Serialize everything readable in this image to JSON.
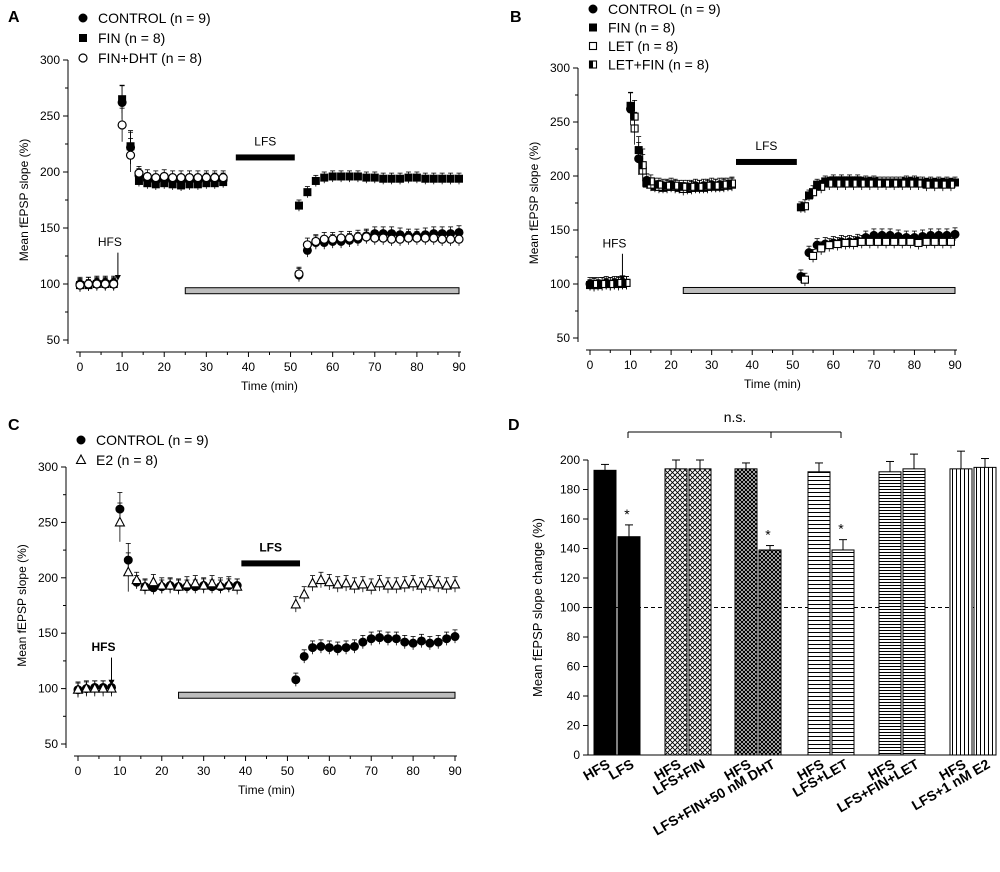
{
  "chart_data": [
    {
      "panel": "A",
      "type": "scatter",
      "xlabel": "Time (min)",
      "ylabel": "Mean fEPSP slope (%)",
      "xlim": [
        0,
        90
      ],
      "ylim": [
        50,
        300
      ],
      "xticks": [
        0,
        10,
        20,
        30,
        40,
        50,
        60,
        70,
        80,
        90
      ],
      "yticks": [
        50,
        100,
        150,
        200,
        250,
        300
      ],
      "legend": [
        {
          "label": "CONTROL (n = 9)",
          "marker": "filled-circle"
        },
        {
          "label": "FIN (n = 8)",
          "marker": "filled-square"
        },
        {
          "label": "FIN+DHT (n = 8)",
          "marker": "open-circle"
        }
      ],
      "annotations": {
        "hfs": "HFS",
        "hfs_time": 9,
        "lfs": "LFS",
        "lfs_start": 37,
        "lfs_end": 51,
        "drug_start": 25,
        "drug_end": 90
      },
      "series": [
        {
          "name": "CONTROL (n = 9)",
          "marker": "filled-circle",
          "x": [
            0,
            2,
            4,
            6,
            8,
            10,
            12,
            14,
            16,
            18,
            20,
            22,
            24,
            26,
            28,
            30,
            32,
            34,
            52,
            54,
            56,
            58,
            60,
            62,
            64,
            66,
            68,
            70,
            72,
            74,
            76,
            78,
            80,
            82,
            84,
            86,
            88,
            90
          ],
          "y": [
            100,
            100,
            101,
            101,
            101,
            262,
            222,
            197,
            193,
            192,
            193,
            192,
            192,
            192,
            192,
            193,
            193,
            193,
            108,
            130,
            137,
            137,
            138,
            138,
            139,
            140,
            143,
            145,
            145,
            145,
            144,
            143,
            143,
            144,
            145,
            145,
            145,
            146
          ],
          "err": 6
        },
        {
          "name": "FIN (n = 8)",
          "marker": "filled-square",
          "x": [
            0,
            2,
            4,
            6,
            8,
            10,
            12,
            14,
            16,
            18,
            20,
            22,
            24,
            26,
            28,
            30,
            32,
            34,
            52,
            54,
            56,
            58,
            60,
            62,
            64,
            66,
            68,
            70,
            72,
            74,
            76,
            78,
            80,
            82,
            84,
            86,
            88,
            90
          ],
          "y": [
            99,
            99,
            100,
            100,
            100,
            265,
            223,
            192,
            190,
            189,
            190,
            189,
            188,
            189,
            189,
            190,
            190,
            191,
            170,
            182,
            192,
            195,
            196,
            196,
            196,
            196,
            195,
            195,
            194,
            194,
            194,
            195,
            195,
            194,
            194,
            194,
            194,
            194
          ],
          "err": 5
        },
        {
          "name": "FIN+DHT (n = 8)",
          "marker": "open-circle",
          "x": [
            0,
            2,
            4,
            6,
            8,
            10,
            12,
            14,
            16,
            18,
            20,
            22,
            24,
            26,
            28,
            30,
            32,
            34,
            52,
            54,
            56,
            58,
            60,
            62,
            64,
            66,
            68,
            70,
            72,
            74,
            76,
            78,
            80,
            82,
            84,
            86,
            88,
            90
          ],
          "y": [
            99,
            100,
            100,
            100,
            100,
            242,
            215,
            199,
            196,
            195,
            196,
            195,
            195,
            195,
            195,
            195,
            195,
            195,
            109,
            135,
            138,
            140,
            140,
            141,
            141,
            142,
            142,
            141,
            141,
            140,
            140,
            141,
            141,
            141,
            141,
            140,
            140,
            140
          ],
          "err": 6
        }
      ]
    },
    {
      "panel": "B",
      "type": "scatter",
      "xlabel": "Time (min)",
      "ylabel": "Mean fEPSP slope (%)",
      "xlim": [
        0,
        90
      ],
      "ylim": [
        50,
        300
      ],
      "xticks": [
        0,
        10,
        20,
        30,
        40,
        50,
        60,
        70,
        80,
        90
      ],
      "yticks": [
        50,
        100,
        150,
        200,
        250,
        300
      ],
      "legend": [
        {
          "label": "CONTROL (n = 9)",
          "marker": "filled-circle"
        },
        {
          "label": "FIN (n = 8)",
          "marker": "filled-square"
        },
        {
          "label": "LET (n = 8)",
          "marker": "open-square"
        },
        {
          "label": "LET+FIN (n = 8)",
          "marker": "half-square"
        }
      ],
      "annotations": {
        "hfs": "HFS",
        "hfs_time": 8,
        "lfs": "LFS",
        "lfs_start": 36,
        "lfs_end": 51,
        "drug_start": 23,
        "drug_end": 90
      },
      "series": [
        {
          "name": "CONTROL (n = 9)",
          "marker": "filled-circle",
          "x": [
            0,
            2,
            4,
            6,
            8,
            10,
            12,
            14,
            16,
            18,
            20,
            22,
            24,
            26,
            28,
            30,
            32,
            34,
            52,
            54,
            56,
            58,
            60,
            62,
            64,
            66,
            68,
            70,
            72,
            74,
            76,
            78,
            80,
            82,
            84,
            86,
            88,
            90
          ],
          "y": [
            100,
            100,
            101,
            101,
            101,
            262,
            216,
            196,
            192,
            191,
            192,
            190,
            190,
            191,
            191,
            192,
            192,
            192,
            107,
            129,
            136,
            137,
            138,
            139,
            139,
            140,
            143,
            145,
            145,
            145,
            144,
            143,
            143,
            144,
            145,
            145,
            145,
            146
          ],
          "err": 6
        },
        {
          "name": "FIN (n = 8)",
          "marker": "filled-square",
          "x": [
            0,
            2,
            4,
            6,
            8,
            10,
            12,
            14,
            16,
            18,
            20,
            22,
            24,
            26,
            28,
            30,
            32,
            34,
            52,
            54,
            56,
            58,
            60,
            62,
            64,
            66,
            68,
            70,
            72,
            74,
            76,
            78,
            80,
            82,
            84,
            86,
            88,
            90
          ],
          "y": [
            99,
            99,
            100,
            100,
            100,
            265,
            224,
            193,
            190,
            189,
            190,
            189,
            188,
            189,
            189,
            190,
            190,
            191,
            171,
            182,
            192,
            195,
            196,
            196,
            196,
            196,
            195,
            195,
            194,
            194,
            194,
            195,
            195,
            194,
            194,
            194,
            194,
            194
          ],
          "err": 5
        },
        {
          "name": "LET (n = 8)",
          "marker": "open-square",
          "x": [
            1,
            3,
            5,
            7,
            9,
            11,
            13,
            15,
            17,
            19,
            21,
            23,
            25,
            27,
            29,
            31,
            33,
            35,
            53,
            55,
            57,
            59,
            61,
            63,
            65,
            67,
            69,
            71,
            73,
            75,
            77,
            79,
            81,
            83,
            85,
            87,
            89
          ],
          "y": [
            99,
            100,
            100,
            100,
            101,
            244,
            205,
            192,
            190,
            190,
            190,
            188,
            189,
            190,
            190,
            191,
            191,
            192,
            104,
            126,
            133,
            136,
            137,
            138,
            138,
            139,
            139,
            139,
            139,
            139,
            139,
            139,
            138,
            139,
            139,
            139,
            139
          ],
          "err": 6
        },
        {
          "name": "LET+FIN (n = 8)",
          "marker": "half-square",
          "x": [
            1,
            3,
            5,
            7,
            9,
            11,
            13,
            15,
            17,
            19,
            21,
            23,
            25,
            27,
            29,
            31,
            33,
            35,
            53,
            55,
            57,
            59,
            61,
            63,
            65,
            67,
            69,
            71,
            73,
            75,
            77,
            79,
            81,
            83,
            85,
            87,
            89
          ],
          "y": [
            100,
            100,
            100,
            101,
            101,
            255,
            210,
            195,
            192,
            191,
            191,
            190,
            190,
            190,
            191,
            191,
            192,
            193,
            172,
            185,
            190,
            193,
            193,
            193,
            193,
            193,
            193,
            193,
            193,
            193,
            193,
            193,
            193,
            192,
            192,
            192,
            192
          ],
          "err": 6
        }
      ]
    },
    {
      "panel": "C",
      "type": "scatter",
      "xlabel": "Time (min)",
      "ylabel": "Mean fEPSP slope (%)",
      "xlim": [
        0,
        90
      ],
      "ylim": [
        50,
        300
      ],
      "xticks": [
        0,
        10,
        20,
        30,
        40,
        50,
        60,
        70,
        80,
        90
      ],
      "yticks": [
        50,
        100,
        150,
        200,
        250,
        300
      ],
      "legend": [
        {
          "label": "CONTROL (n = 9)",
          "marker": "filled-circle"
        },
        {
          "label": "E2 (n = 8)",
          "marker": "open-triangle"
        }
      ],
      "annotations": {
        "hfs": "HFS",
        "hfs_time": 8,
        "lfs": "LFS",
        "lfs_start": 39,
        "lfs_end": 53,
        "drug_start": 24,
        "drug_end": 90
      },
      "series": [
        {
          "name": "CONTROL (n = 9)",
          "marker": "filled-circle",
          "x": [
            0,
            2,
            4,
            6,
            8,
            10,
            12,
            14,
            16,
            18,
            20,
            22,
            24,
            26,
            28,
            30,
            32,
            34,
            36,
            38,
            52,
            54,
            56,
            58,
            60,
            62,
            64,
            66,
            68,
            70,
            72,
            74,
            76,
            78,
            80,
            82,
            84,
            86,
            88,
            90
          ],
          "y": [
            99,
            100,
            101,
            101,
            101,
            262,
            216,
            196,
            192,
            191,
            192,
            193,
            192,
            192,
            192,
            193,
            192,
            192,
            193,
            193,
            108,
            129,
            137,
            138,
            137,
            136,
            137,
            138,
            142,
            145,
            146,
            145,
            145,
            142,
            141,
            143,
            141,
            142,
            145,
            147
          ],
          "err": 6
        },
        {
          "name": "E2 (n = 8)",
          "marker": "open-triangle",
          "x": [
            0,
            2,
            4,
            6,
            8,
            10,
            12,
            14,
            16,
            18,
            20,
            22,
            24,
            26,
            28,
            30,
            32,
            34,
            36,
            38,
            52,
            54,
            56,
            58,
            60,
            62,
            64,
            66,
            68,
            70,
            72,
            74,
            76,
            78,
            80,
            82,
            84,
            86,
            88,
            90
          ],
          "y": [
            99,
            100,
            100,
            100,
            100,
            250,
            205,
            198,
            192,
            196,
            193,
            193,
            192,
            194,
            195,
            193,
            195,
            193,
            194,
            192,
            176,
            185,
            195,
            198,
            196,
            194,
            195,
            193,
            194,
            192,
            195,
            193,
            193,
            194,
            195,
            193,
            195,
            194,
            193,
            194
          ],
          "err": 7
        }
      ]
    },
    {
      "panel": "D",
      "type": "bar",
      "ylabel": "Mean fEPSP slope change (%)",
      "ylim": [
        0,
        200
      ],
      "yticks": [
        0,
        20,
        40,
        60,
        80,
        100,
        120,
        140,
        160,
        180,
        200
      ],
      "reference_line": 100,
      "significance": {
        "bracket_label": "n.s.",
        "star": "*"
      },
      "groups": [
        {
          "labels": [
            "HFS",
            "LFS"
          ],
          "pattern": "solid",
          "values": [
            193,
            148
          ],
          "errors": [
            4,
            8
          ],
          "stars": [
            false,
            true
          ]
        },
        {
          "labels": [
            "HFS",
            "LFS+FIN"
          ],
          "pattern": "crosshatch",
          "values": [
            194,
            194
          ],
          "errors": [
            6,
            6
          ],
          "stars": [
            false,
            false
          ]
        },
        {
          "labels": [
            "HFS",
            "LFS+FIN+50 nM DHT"
          ],
          "pattern": "grid",
          "values": [
            194,
            139
          ],
          "errors": [
            4,
            3
          ],
          "stars": [
            false,
            true
          ]
        },
        {
          "labels": [
            "HFS",
            "LFS+LET"
          ],
          "pattern": "horizontal",
          "values": [
            192,
            139
          ],
          "errors": [
            6,
            7
          ],
          "stars": [
            false,
            true
          ]
        },
        {
          "labels": [
            "HFS",
            "LFS+FIN+LET"
          ],
          "pattern": "horizontal-dense",
          "values": [
            192,
            194
          ],
          "errors": [
            7,
            10
          ],
          "stars": [
            false,
            false
          ]
        },
        {
          "labels": [
            "HFS",
            "LFS+1 nM E2"
          ],
          "pattern": "vertical",
          "values": [
            194,
            195
          ],
          "errors": [
            12,
            6
          ],
          "stars": [
            false,
            false
          ]
        }
      ]
    }
  ],
  "panel_letters": [
    "A",
    "B",
    "C",
    "D"
  ]
}
